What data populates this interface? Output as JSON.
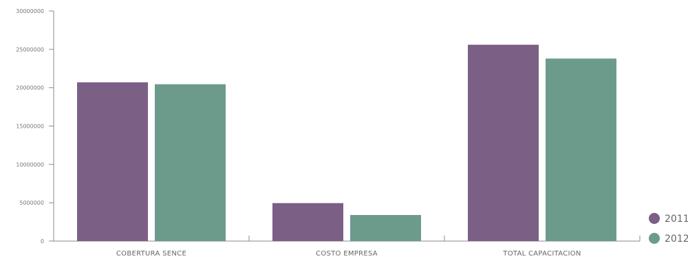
{
  "chart_data": {
    "type": "bar",
    "title": "",
    "xlabel": "",
    "ylabel": "",
    "categories": [
      "COBERTURA SENCE",
      "COSTO EMPRESA",
      "TOTAL CAPACITACION"
    ],
    "series": [
      {
        "name": "2011",
        "color": "#7b5f85",
        "values": [
          20700000,
          4950000,
          25600000
        ]
      },
      {
        "name": "2012",
        "color": "#6c9b8c",
        "values": [
          20450000,
          3400000,
          23800000
        ]
      }
    ],
    "ylim": [
      0,
      30000000
    ],
    "yticks": [
      "0",
      "5000000",
      "10000000",
      "15000000",
      "20000000",
      "25000000",
      "30000000"
    ],
    "grid": false,
    "legend_position": "bottom-right"
  }
}
